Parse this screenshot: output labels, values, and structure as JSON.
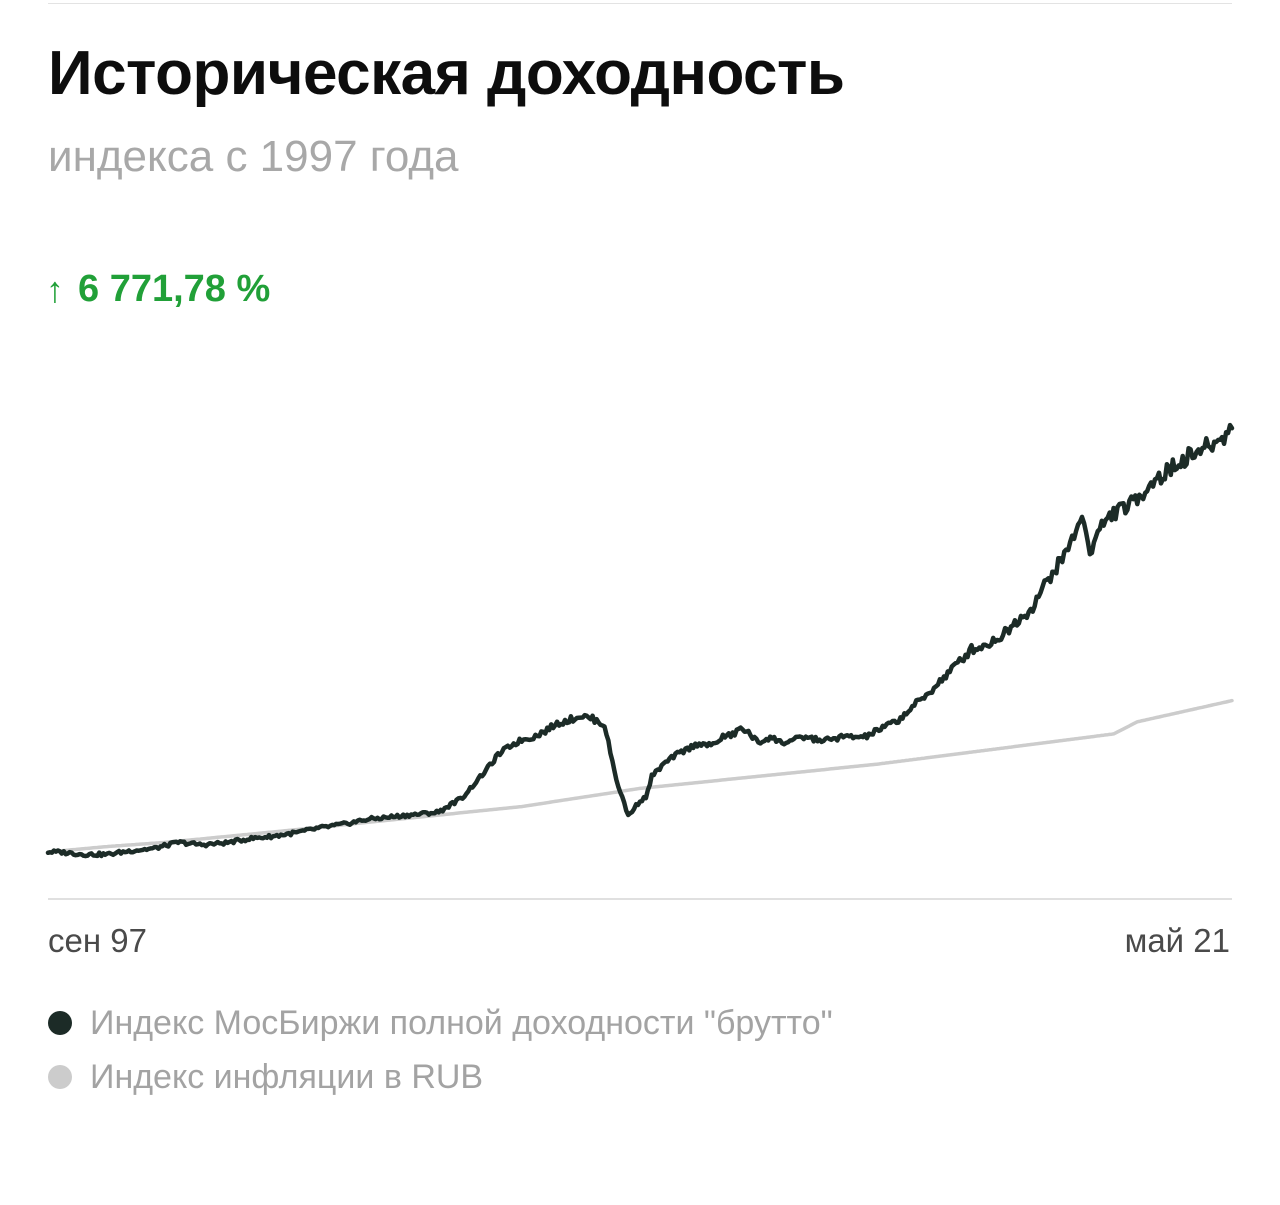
{
  "header": {
    "title": "Историческая доходность",
    "subtitle": "индекса с 1997 года"
  },
  "total_return": {
    "arrow": "↑",
    "value": "6 771,78 %",
    "color": "#21a038"
  },
  "chart_data": {
    "type": "line",
    "x_start_label": "сен 97",
    "x_end_label": "май 21",
    "ylabel": "",
    "grid": false,
    "legend_placement": "bottom",
    "y_unit": "index level (start = 100)",
    "ylim": [
      0,
      7400
    ],
    "series": [
      {
        "name": "Индекс МосБиржи полной доходности \"брутто\"",
        "color": "#1c2b27",
        "x": [
          0,
          0.01,
          0.03,
          0.05,
          0.07,
          0.09,
          0.11,
          0.13,
          0.15,
          0.17,
          0.19,
          0.21,
          0.23,
          0.25,
          0.27,
          0.29,
          0.31,
          0.33,
          0.35,
          0.37,
          0.38,
          0.39,
          0.4,
          0.41,
          0.42,
          0.43,
          0.44,
          0.45,
          0.46,
          0.47,
          0.48,
          0.49,
          0.495,
          0.5,
          0.505,
          0.51,
          0.52,
          0.53,
          0.54,
          0.55,
          0.56,
          0.57,
          0.58,
          0.585,
          0.59,
          0.6,
          0.61,
          0.62,
          0.63,
          0.64,
          0.65,
          0.66,
          0.67,
          0.68,
          0.69,
          0.7,
          0.71,
          0.72,
          0.73,
          0.74,
          0.75,
          0.76,
          0.77,
          0.78,
          0.79,
          0.8,
          0.81,
          0.82,
          0.83,
          0.84,
          0.85,
          0.86,
          0.87,
          0.875,
          0.88,
          0.89,
          0.9,
          0.91,
          0.92,
          0.93,
          0.94,
          0.95,
          0.96,
          0.97,
          0.98,
          0.985,
          0.99,
          0.995,
          1.0
        ],
        "values": [
          100,
          100,
          60,
          60,
          120,
          160,
          260,
          220,
          250,
          320,
          360,
          420,
          500,
          560,
          640,
          680,
          720,
          760,
          1000,
          1450,
          1700,
          1850,
          1950,
          2000,
          2100,
          2220,
          2280,
          2350,
          2300,
          2200,
          1300,
          700,
          820,
          950,
          1000,
          1350,
          1550,
          1700,
          1800,
          1900,
          1850,
          2000,
          2050,
          2150,
          2100,
          1900,
          2000,
          1900,
          1950,
          2000,
          1950,
          1950,
          2000,
          2000,
          2000,
          2100,
          2200,
          2300,
          2500,
          2650,
          2850,
          3050,
          3250,
          3450,
          3500,
          3600,
          3750,
          3950,
          4100,
          4450,
          4750,
          5050,
          5500,
          5600,
          5050,
          5500,
          5700,
          5800,
          5900,
          6200,
          6300,
          6450,
          6600,
          6700,
          6800,
          6850,
          6900,
          7000,
          7100
        ]
      },
      {
        "name": "Индекс инфляции в RUB",
        "color": "#cccccc",
        "x": [
          0,
          0.05,
          0.1,
          0.2,
          0.3,
          0.4,
          0.5,
          0.6,
          0.7,
          0.8,
          0.9,
          0.92,
          1.0
        ],
        "values": [
          100,
          190,
          260,
          450,
          650,
          850,
          1150,
          1350,
          1550,
          1800,
          2050,
          2250,
          2600
        ]
      }
    ]
  }
}
